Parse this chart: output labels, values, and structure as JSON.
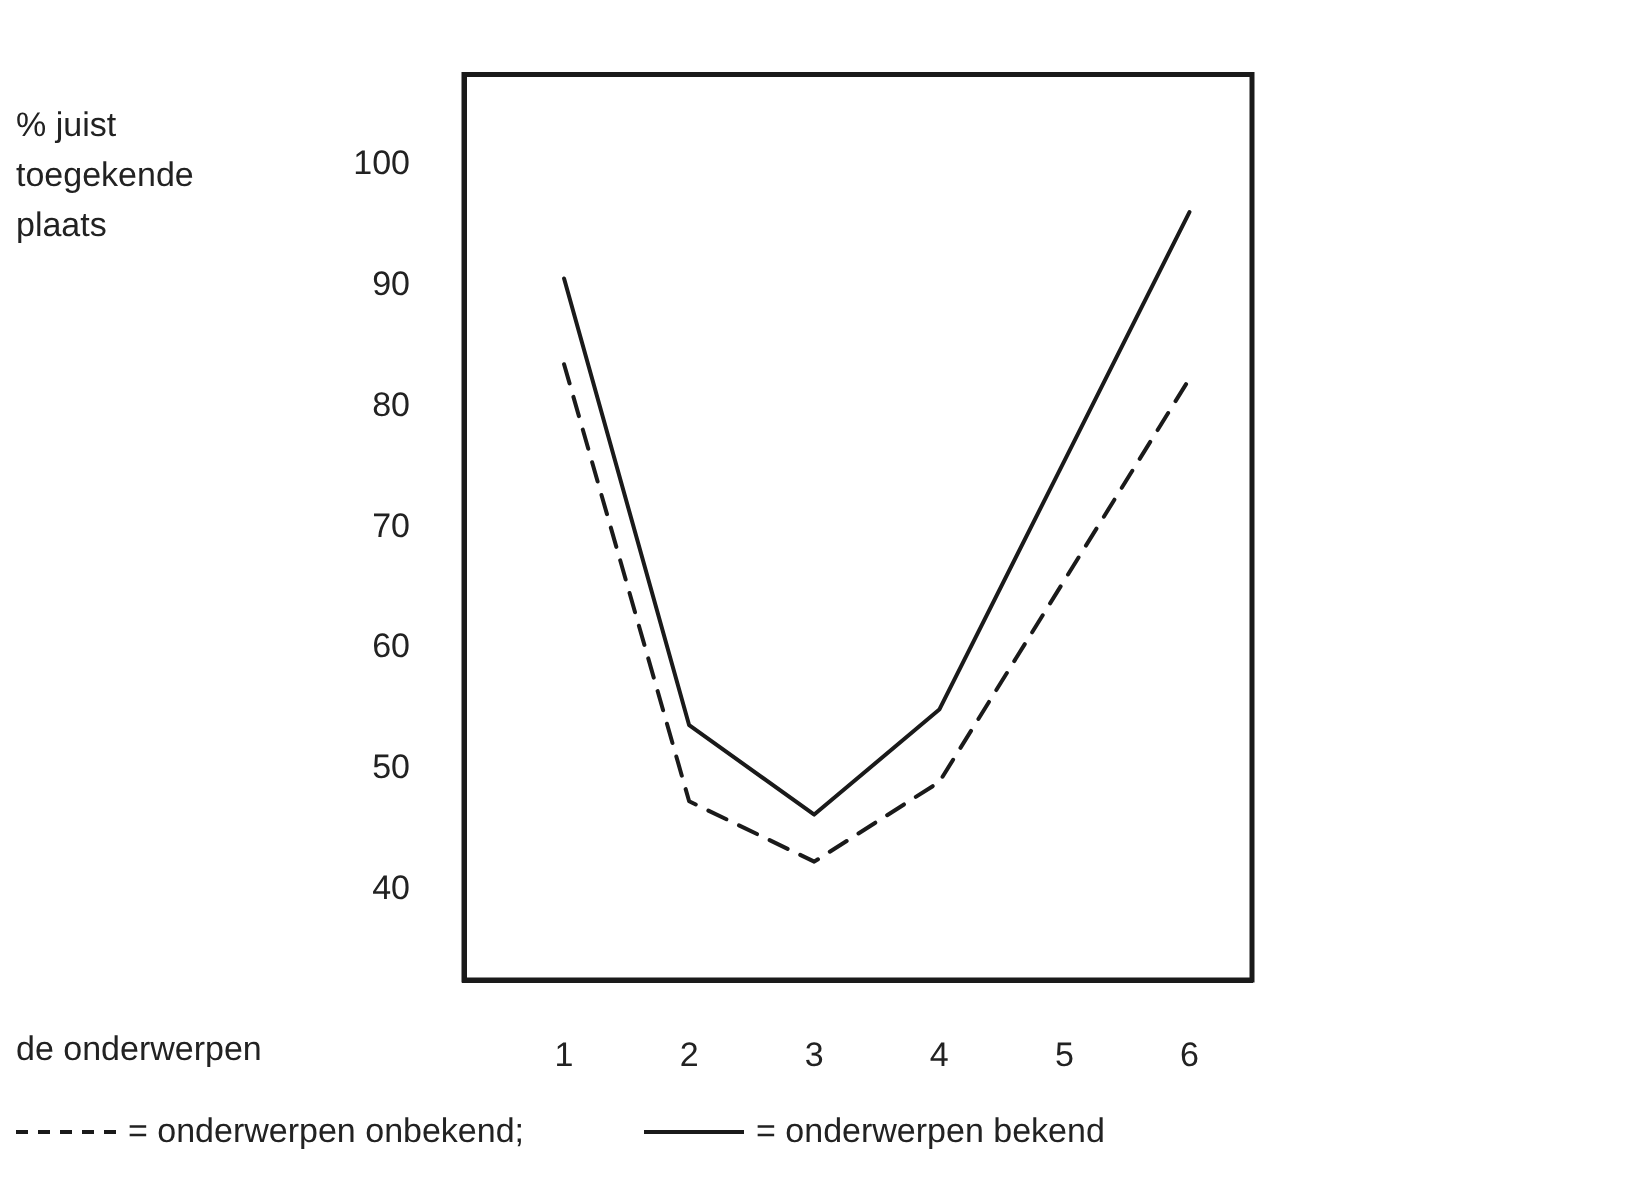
{
  "chart_data": {
    "type": "line",
    "xlabel": "de onderwerpen",
    "ylabel": "% juist toegekende plaats",
    "x": [
      1,
      2,
      3,
      4,
      5,
      6
    ],
    "xlim": [
      0.2,
      6.5
    ],
    "xticks": [
      1,
      2,
      3,
      4,
      5,
      6
    ],
    "ylim": [
      32.5,
      107.5
    ],
    "yticks": [
      40,
      50,
      60,
      70,
      80,
      90,
      100
    ],
    "series": [
      {
        "name": "= onderwerpen onbekend;",
        "color": "#1a1a1a",
        "line_style": "dashed",
        "values": [
          83.5,
          47.3,
          42.3,
          48.9,
          65.6,
          82.3
        ]
      },
      {
        "name": "= onderwerpen bekend",
        "color": "#1a1a1a",
        "line_style": "solid",
        "values": [
          90.6,
          53.6,
          46.2,
          54.9,
          75.5,
          96.1
        ]
      }
    ],
    "grid": false,
    "legend": "bottom",
    "marker": "none"
  }
}
